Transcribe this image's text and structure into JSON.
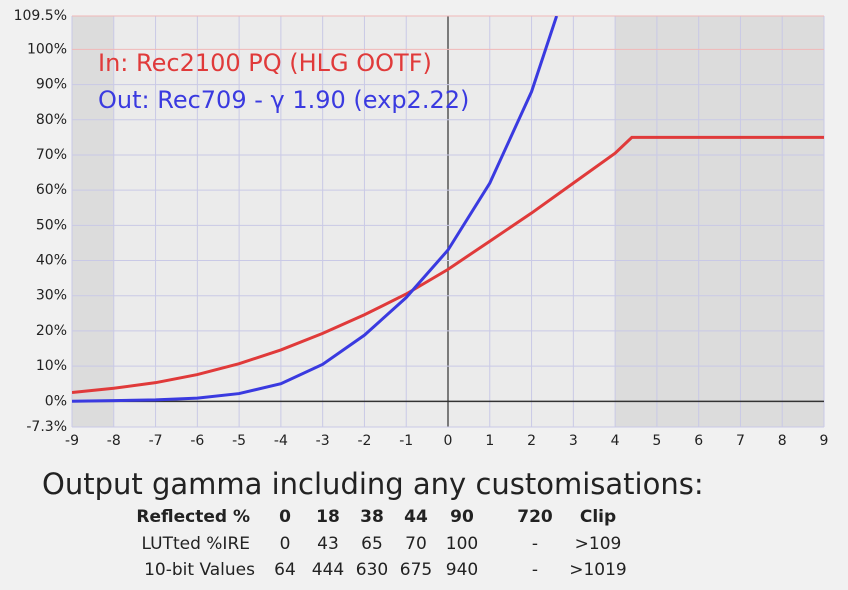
{
  "chart_data": {
    "type": "line",
    "annotations": [
      {
        "text": "In: Rec2100 PQ (HLG OOTF)",
        "color": "#e03a3a"
      },
      {
        "text": "Out: Rec709 - γ  1.90 (exp2.22)",
        "color": "#3a3ae0"
      }
    ],
    "series": [
      {
        "name": "In",
        "color": "#e03a3a",
        "x": [
          -9,
          -8,
          -7,
          -6,
          -5,
          -4,
          -3,
          -2,
          -1,
          0,
          1,
          2,
          3,
          4,
          4.4,
          5,
          6,
          7,
          8,
          9
        ],
        "values": [
          2.5,
          3.7,
          5.3,
          7.6,
          10.7,
          14.6,
          19.3,
          24.6,
          30.5,
          37.5,
          45.5,
          53.5,
          62,
          70.5,
          75,
          75,
          75,
          75,
          75,
          75
        ]
      },
      {
        "name": "Out",
        "color": "#3a3ae0",
        "x": [
          -9,
          -8,
          -7,
          -6,
          -5,
          -4,
          -3,
          -2,
          -1,
          0,
          1,
          2,
          2.6
        ],
        "values": [
          0,
          0.2,
          0.4,
          0.9,
          2.2,
          5,
          10.5,
          18.8,
          29.5,
          43,
          62,
          88,
          109.5
        ]
      }
    ],
    "shaded_x": [
      [
        -9,
        -8
      ],
      [
        4,
        9
      ]
    ],
    "xlim": [
      -9,
      9
    ],
    "ylim": [
      -7.3,
      109.5
    ],
    "xticks": [
      -9,
      -8,
      -7,
      -6,
      -5,
      -4,
      -3,
      -2,
      -1,
      0,
      1,
      2,
      3,
      4,
      5,
      6,
      7,
      8,
      9
    ],
    "yticks": [
      {
        "value": -7.3,
        "label": "-7.3%"
      },
      {
        "value": 0,
        "label": "0%"
      },
      {
        "value": 10,
        "label": "10%"
      },
      {
        "value": 20,
        "label": "20%"
      },
      {
        "value": 30,
        "label": "30%"
      },
      {
        "value": 40,
        "label": "40%"
      },
      {
        "value": 50,
        "label": "50%"
      },
      {
        "value": 60,
        "label": "60%"
      },
      {
        "value": 70,
        "label": "70%"
      },
      {
        "value": 80,
        "label": "80%"
      },
      {
        "value": 90,
        "label": "90%"
      },
      {
        "value": 100,
        "label": "100%"
      },
      {
        "value": 109.5,
        "label": "109.5%"
      }
    ],
    "grid": true
  },
  "table": {
    "title": "Output gamma including any customisations:",
    "header": [
      "Reflected %",
      "0",
      "18",
      "38",
      "44",
      "90",
      "720",
      "Clip"
    ],
    "rows": [
      [
        "LUTted %IRE",
        "0",
        "43",
        "65",
        "70",
        "100",
        "-",
        ">109"
      ],
      [
        "10-bit Values",
        "64",
        "444",
        "630",
        "675",
        "940",
        "-",
        ">1019"
      ]
    ]
  }
}
